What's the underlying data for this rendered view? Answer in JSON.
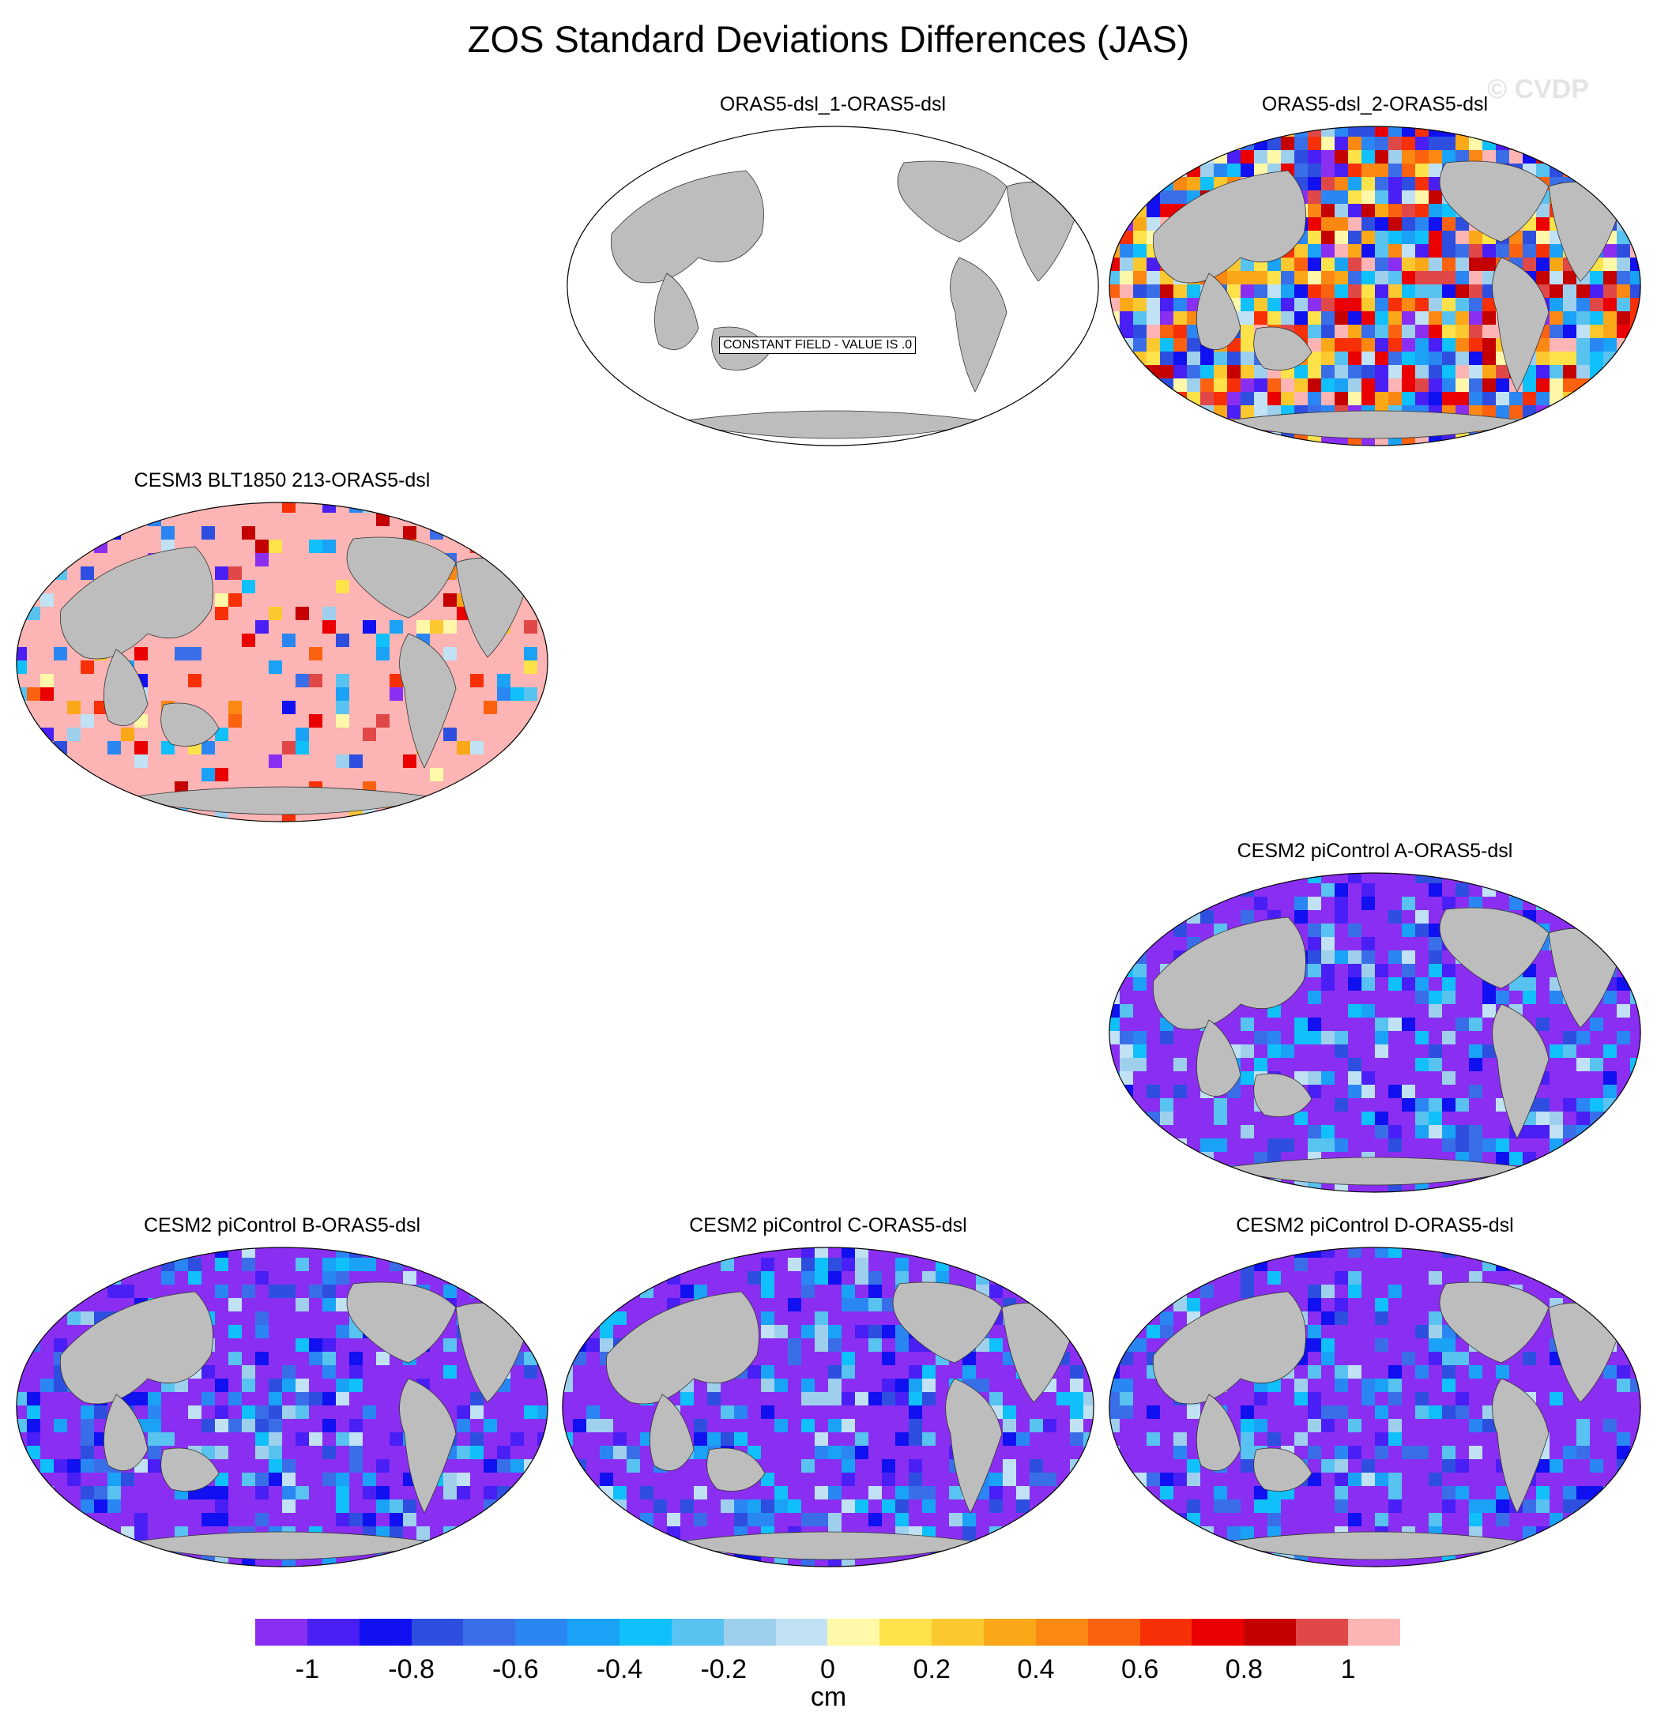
{
  "title": "ZOS Standard Deviations Differences (JAS)",
  "watermark": "© CVDP",
  "panels": [
    {
      "id": "p1",
      "title": "ORAS5-dsl_1-ORAS5-dsl",
      "fill": "constant",
      "note": "CONSTANT FIELD - VALUE IS .0"
    },
    {
      "id": "p2",
      "title": "ORAS5-dsl_2-ORAS5-dsl",
      "fill": "mixed"
    },
    {
      "id": "p3",
      "title": "CESM3 BLT1850 213-ORAS5-dsl",
      "fill": "positive"
    },
    {
      "id": "p4",
      "title": "CESM2 piControl A-ORAS5-dsl",
      "fill": "negative"
    },
    {
      "id": "p5",
      "title": "CESM2 piControl B-ORAS5-dsl",
      "fill": "negative"
    },
    {
      "id": "p6",
      "title": "CESM2 piControl C-ORAS5-dsl",
      "fill": "negative"
    },
    {
      "id": "p7",
      "title": "CESM2 piControl D-ORAS5-dsl",
      "fill": "negative"
    }
  ],
  "colorbar": {
    "colors": [
      "#8a2ff2",
      "#4a1ff5",
      "#1010f0",
      "#2e4ee0",
      "#3a6ee8",
      "#2a86f2",
      "#1aa2f6",
      "#10c0fa",
      "#58c2f0",
      "#9ed0ee",
      "#c0e2f4",
      "#fef8a8",
      "#fde24a",
      "#fcc830",
      "#fba818",
      "#fb8812",
      "#fb6210",
      "#f83008",
      "#ea0000",
      "#c40000",
      "#e04848",
      "#fcb4b4"
    ],
    "tick_labels": [
      "-1",
      "-0.8",
      "-0.6",
      "-0.4",
      "-0.2",
      "0",
      "0.2",
      "0.4",
      "0.6",
      "0.8",
      "1"
    ],
    "unit": "cm"
  },
  "colors": {
    "land": "#bdbdbd",
    "ocean_constant": "#ffffff",
    "positive": "#fcb4b4",
    "negative": "#8a2ff2"
  }
}
